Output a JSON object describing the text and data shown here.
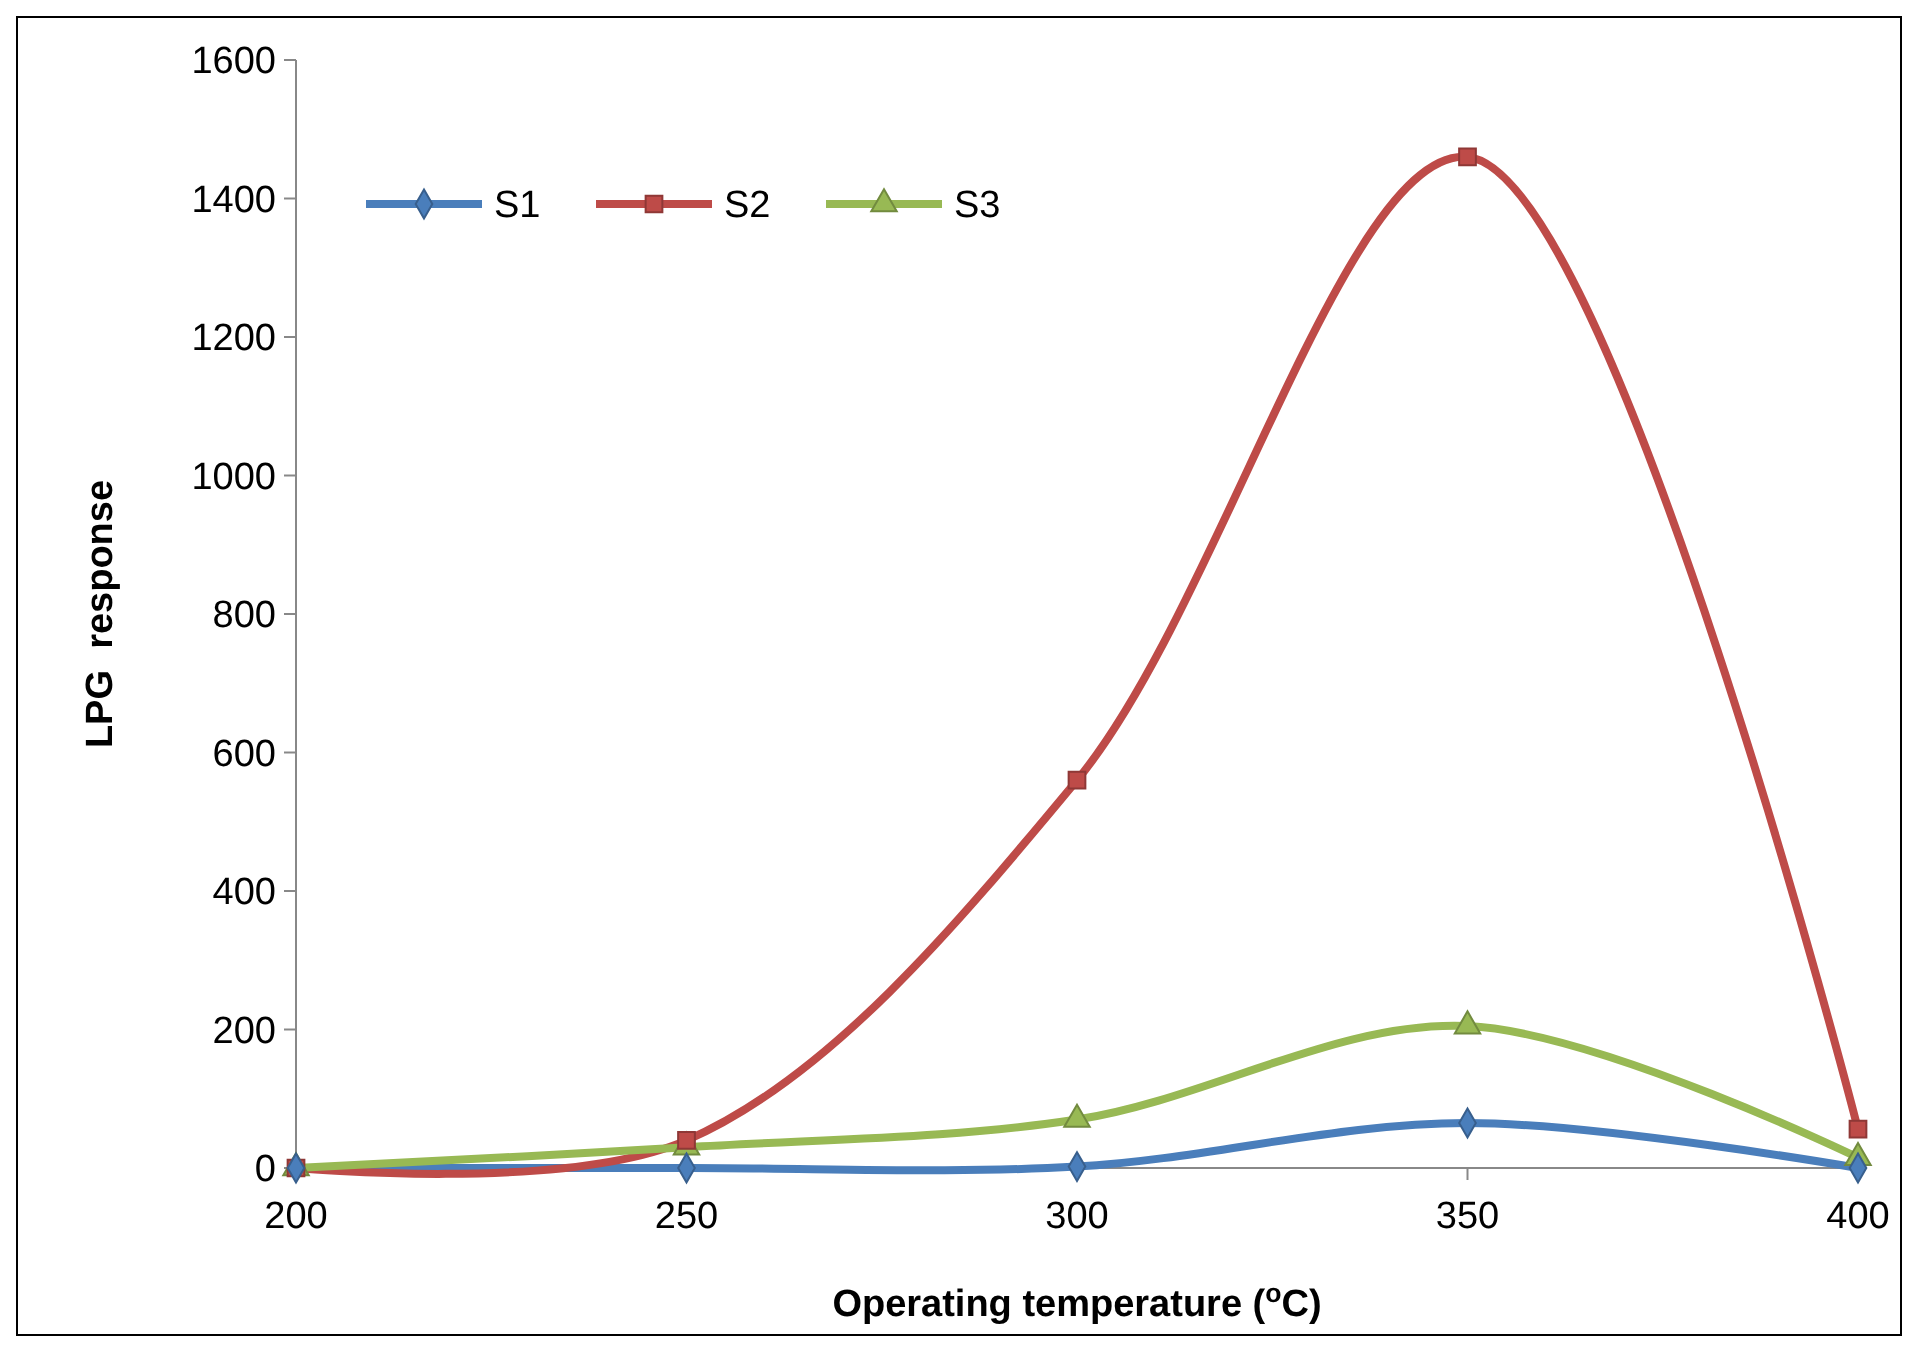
{
  "chart_data": {
    "type": "line",
    "xlabel": "Operating temperature ($^{o}$C)",
    "ylabel": "LPG  response",
    "x": [
      200,
      250,
      300,
      350,
      400
    ],
    "xlim": [
      200,
      400
    ],
    "xticks": [
      200,
      250,
      300,
      350,
      400
    ],
    "ylim": [
      0,
      1600
    ],
    "yticks": [
      0,
      200,
      400,
      600,
      800,
      1000,
      1200,
      1400,
      1600
    ],
    "grid": false,
    "legend": "top left",
    "line_style": "solid",
    "series": [
      {
        "name": "S1",
        "color": "#4a7ebb",
        "marker": "diamond",
        "values": [
          0,
          0,
          2,
          65,
          0
        ]
      },
      {
        "name": "S2",
        "color": "#be4b48",
        "marker": "square",
        "values": [
          0,
          40,
          560,
          1460,
          56
        ]
      },
      {
        "name": "S3",
        "color": "#98b954",
        "marker": "triangle",
        "values": [
          0,
          30,
          70,
          205,
          15
        ]
      }
    ]
  }
}
